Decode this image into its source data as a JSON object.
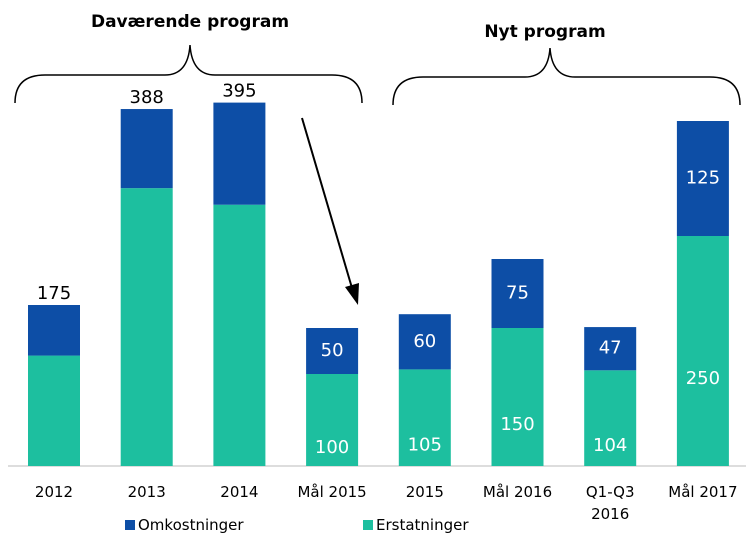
{
  "chart_data": {
    "type": "stacked_bar",
    "categories": [
      "2012",
      "2013",
      "2014",
      "Mål 2015",
      "2015",
      "Mål 2016",
      "Q1-Q3 2016",
      "Mål 2017"
    ],
    "series": [
      {
        "name": "Erstatninger",
        "color": "#1dbf9f",
        "values": [
          120,
          302,
          284,
          100,
          105,
          150,
          104,
          250
        ],
        "value_labels": [
          null,
          null,
          null,
          100,
          105,
          150,
          104,
          250
        ]
      },
      {
        "name": "Omkostninger",
        "color": "#0d4ea6",
        "values": [
          55,
          86,
          111,
          50,
          60,
          75,
          47,
          125
        ],
        "value_labels": [
          null,
          null,
          null,
          50,
          60,
          75,
          47,
          125
        ]
      }
    ],
    "totals": [
      175,
      388,
      395,
      null,
      null,
      null,
      null,
      null
    ],
    "ylim": [
      0,
      500
    ],
    "annotations": [
      "Daværende program",
      "Nyt program"
    ]
  }
}
